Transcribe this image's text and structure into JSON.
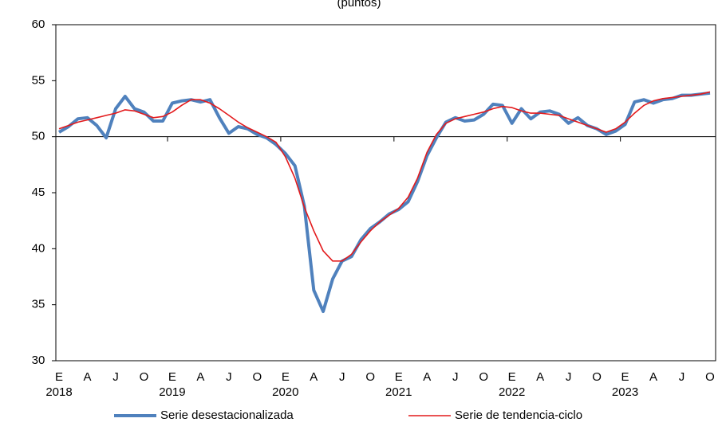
{
  "chart_data": {
    "type": "line",
    "subtitle": "(puntos)",
    "categories": [
      "E",
      null,
      null,
      "A",
      null,
      null,
      "J",
      null,
      null,
      "O",
      null,
      null,
      "E",
      null,
      null,
      "A",
      null,
      null,
      "J",
      null,
      null,
      "O",
      null,
      null,
      "E",
      null,
      null,
      "A",
      null,
      null,
      "J",
      null,
      null,
      "O",
      null,
      null,
      "E",
      null,
      null,
      "A",
      null,
      null,
      "J",
      null,
      null,
      "O",
      null,
      null,
      "E",
      null,
      null,
      "A",
      null,
      null,
      "J",
      null,
      null,
      "O",
      null,
      null,
      "E",
      null,
      null,
      "A",
      null,
      null,
      "J",
      null,
      null,
      "O"
    ],
    "years": [
      "2018",
      "2019",
      "2020",
      "2021",
      "2022",
      "2023"
    ],
    "ylim": [
      30,
      60
    ],
    "yticks": [
      30,
      35,
      40,
      45,
      50,
      55,
      60
    ],
    "x_axis_crosses": 50,
    "grid": false,
    "legend": "bottom",
    "series": [
      {
        "name": "Serie desestacionalizada",
        "color": "#4f81bd",
        "width": 4,
        "values": [
          50.4,
          50.9,
          51.6,
          51.7,
          51.0,
          49.9,
          52.5,
          53.6,
          52.5,
          52.2,
          51.4,
          51.4,
          53.0,
          53.2,
          53.3,
          53.1,
          53.3,
          51.7,
          50.3,
          50.9,
          50.7,
          50.2,
          49.9,
          49.3,
          48.5,
          47.4,
          43.8,
          36.3,
          34.4,
          37.3,
          38.9,
          39.3,
          40.8,
          41.8,
          42.4,
          43.1,
          43.5,
          44.2,
          46.0,
          48.3,
          49.9,
          51.3,
          51.7,
          51.4,
          51.5,
          52.0,
          52.9,
          52.8,
          51.2,
          52.5,
          51.6,
          52.2,
          52.3,
          52.0,
          51.2,
          51.7,
          51.0,
          50.7,
          50.2,
          50.5,
          51.1,
          53.1,
          53.3,
          53.0,
          53.3,
          53.4,
          53.7,
          53.7,
          53.8,
          53.9
        ]
      },
      {
        "name": "Serie de tendencia-ciclo",
        "color": "#e31a1c",
        "width": 1.6,
        "values": [
          50.7,
          51.0,
          51.3,
          51.5,
          51.7,
          51.9,
          52.1,
          52.4,
          52.3,
          52.0,
          51.7,
          51.8,
          52.2,
          52.8,
          53.3,
          53.3,
          53.0,
          52.5,
          51.9,
          51.3,
          50.8,
          50.4,
          50.0,
          49.5,
          48.2,
          46.3,
          43.7,
          41.6,
          39.8,
          38.9,
          38.9,
          39.5,
          40.6,
          41.6,
          42.4,
          43.0,
          43.6,
          44.6,
          46.3,
          48.6,
          50.2,
          51.2,
          51.6,
          51.8,
          52.0,
          52.2,
          52.5,
          52.7,
          52.6,
          52.3,
          52.1,
          52.1,
          52.0,
          51.9,
          51.6,
          51.3,
          51.0,
          50.7,
          50.4,
          50.7,
          51.3,
          52.1,
          52.8,
          53.2,
          53.4,
          53.5,
          53.6,
          53.7,
          53.8,
          54.0
        ]
      }
    ]
  }
}
